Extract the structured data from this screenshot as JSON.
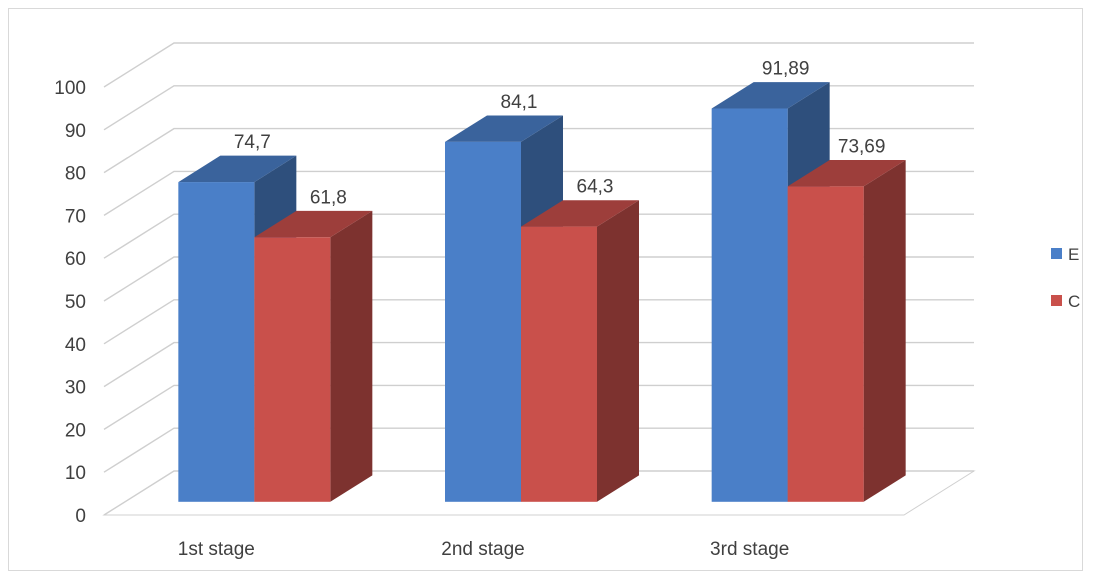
{
  "chart_data": {
    "type": "bar",
    "categories": [
      "1st stage",
      "2nd stage",
      "3rd stage"
    ],
    "series": [
      {
        "name": "E",
        "values": [
          74.7,
          84.1,
          91.89
        ],
        "labels": [
          "74,7",
          "84,1",
          "91,89"
        ],
        "color": "#4a7fc8"
      },
      {
        "name": "C",
        "values": [
          61.8,
          64.3,
          73.69
        ],
        "labels": [
          "61,8",
          "64,3",
          "73,69"
        ],
        "color": "#c9504b"
      }
    ],
    "ylim": [
      0,
      100
    ],
    "yticks": [
      "0",
      "10",
      "20",
      "30",
      "40",
      "50",
      "60",
      "70",
      "80",
      "90",
      "100"
    ],
    "title": "",
    "xlabel": "",
    "ylabel": "",
    "grid": true,
    "legend_position": "right",
    "style": "3d-column"
  }
}
